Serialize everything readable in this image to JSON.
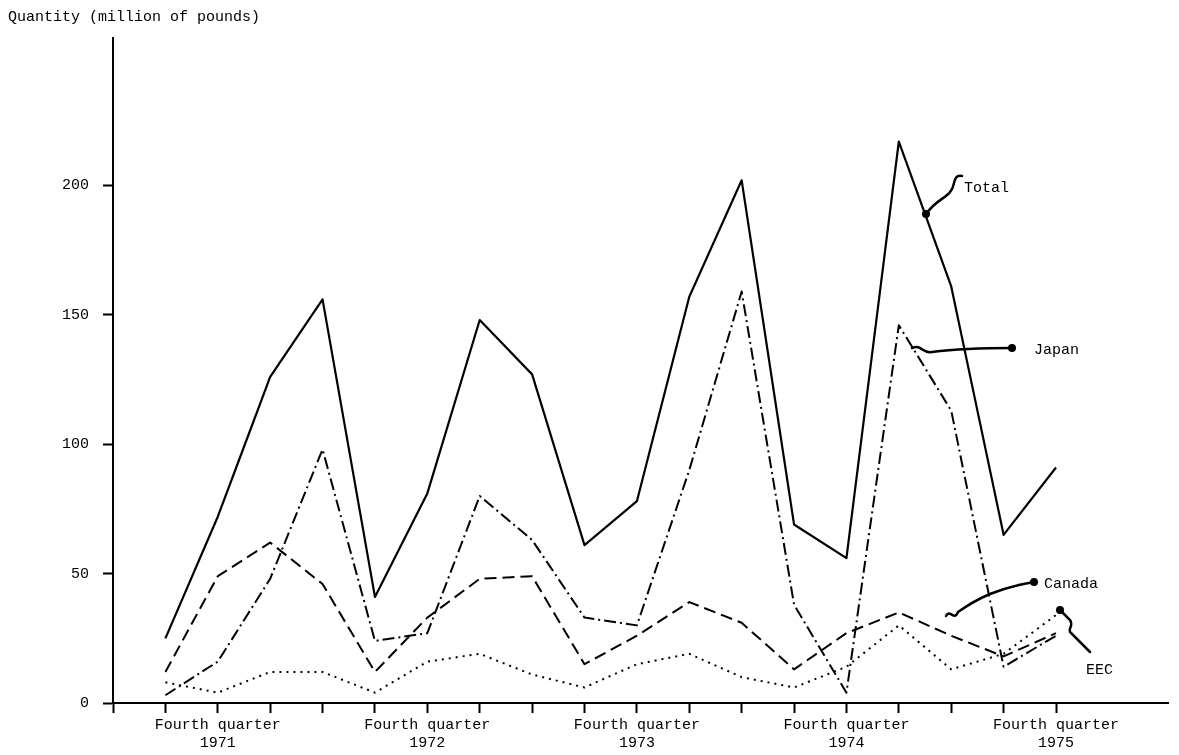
{
  "chart_data": {
    "type": "line",
    "ylabel": "Quantity (million of pounds)",
    "categories": [
      null,
      null,
      "Fourth quarter 1971",
      null,
      null,
      null,
      "Fourth quarter 1972",
      null,
      null,
      null,
      "Fourth quarter 1973",
      null,
      null,
      null,
      "Fourth quarter 1974",
      null,
      null,
      null,
      "Fourth quarter 1975"
    ],
    "series": [
      {
        "name": "Total",
        "color": "#000000",
        "line_style": "solid",
        "values": [
          null,
          25,
          72,
          126,
          156,
          41,
          81,
          148,
          127,
          61,
          78,
          157,
          202,
          69,
          56,
          217,
          161,
          65,
          91
        ]
      },
      {
        "name": "Japan",
        "color": "#000000",
        "line_style": "dashdot",
        "values": [
          null,
          3,
          16,
          48,
          98,
          24,
          27,
          80,
          63,
          33,
          30,
          90,
          159,
          38,
          4,
          146,
          113,
          14,
          26
        ]
      },
      {
        "name": "Canada",
        "color": "#000000",
        "line_style": "dashed",
        "values": [
          null,
          12,
          49,
          62,
          46,
          12,
          33,
          48,
          49,
          15,
          26,
          39,
          31,
          13,
          27,
          35,
          26,
          18,
          27
        ]
      },
      {
        "name": "EEC",
        "color": "#000000",
        "line_style": "dotted",
        "values": [
          null,
          8,
          4,
          12,
          12,
          4,
          16,
          19,
          11,
          6,
          15,
          19,
          10,
          6,
          14,
          30,
          13,
          19,
          34
        ]
      }
    ],
    "ylim": [
      0,
      257
    ],
    "yticks": [
      0,
      50,
      100,
      150,
      200
    ],
    "marker": "none",
    "legend": "right"
  }
}
